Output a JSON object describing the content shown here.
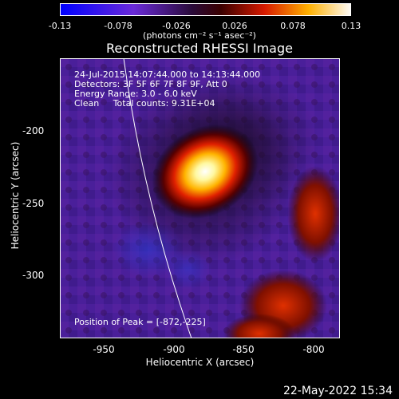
{
  "colorbar": {
    "tick_labels": [
      "-0.13",
      "-0.078",
      "-0.026",
      "0.026",
      "0.078",
      "0.13"
    ],
    "units": "(photons cm⁻² s⁻¹ asec⁻²)"
  },
  "title": "Reconstructed RHESSI Image",
  "info": {
    "time_range": "24-Jul-2015 14:07:44.000 to 14:13:44.000",
    "detectors": "Detectors: 3F 5F 6F 7F 8F 9F, Att 0",
    "energy": "Energy Range: 3.0 - 6.0 keV",
    "method": "Clean     Total counts: 9.31E+04"
  },
  "peak": "Position of Peak = [-872,-225]",
  "axes": {
    "xlabel": "Heliocentric X (arcsec)",
    "ylabel": "Heliocentric Y (arcsec)",
    "x_tick_labels": [
      "-950",
      "-900",
      "-850",
      "-800"
    ],
    "y_tick_labels": [
      "-200",
      "-250",
      "-300"
    ]
  },
  "timestamp": "22-May-2022 15:34",
  "chart_data": {
    "type": "heatmap",
    "title": "Reconstructed RHESSI Image",
    "xlabel": "Heliocentric X (arcsec)",
    "ylabel": "Heliocentric Y (arcsec)",
    "xlim": [
      -975,
      -775
    ],
    "ylim": [
      -345,
      -145
    ],
    "clim": [
      -0.13,
      0.13
    ],
    "source_peak": [
      -872,
      -225
    ],
    "colormap": "rhessi-blue-purple-red-yellow-white"
  }
}
